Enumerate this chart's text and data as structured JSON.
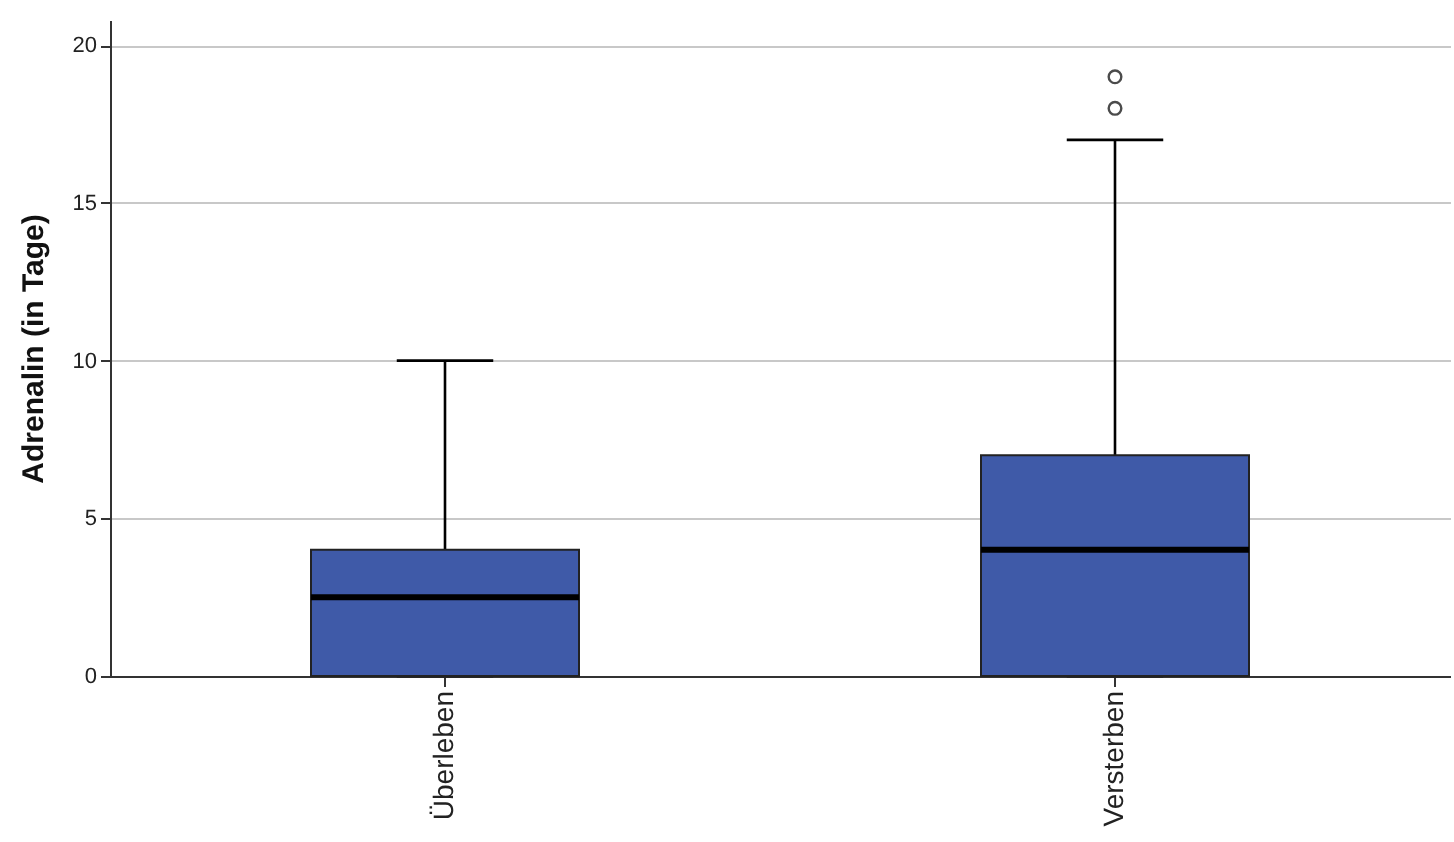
{
  "chart_data": {
    "type": "box",
    "ylabel": "Adrenalin (in Tage)",
    "categories": [
      "Überleben",
      "Versterben"
    ],
    "boxes": [
      {
        "low": 0,
        "q1": 0,
        "median": 2.5,
        "q3": 4,
        "high": 10
      },
      {
        "low": 0,
        "q1": 0,
        "median": 4,
        "q3": 7,
        "high": 17,
        "outliers": [
          18,
          19
        ]
      }
    ],
    "color": "#3f5aa8",
    "ylim": [
      0,
      20.8
    ],
    "yticks": [
      0,
      5,
      10,
      15,
      20
    ],
    "grid": "y",
    "marker": "circle"
  }
}
